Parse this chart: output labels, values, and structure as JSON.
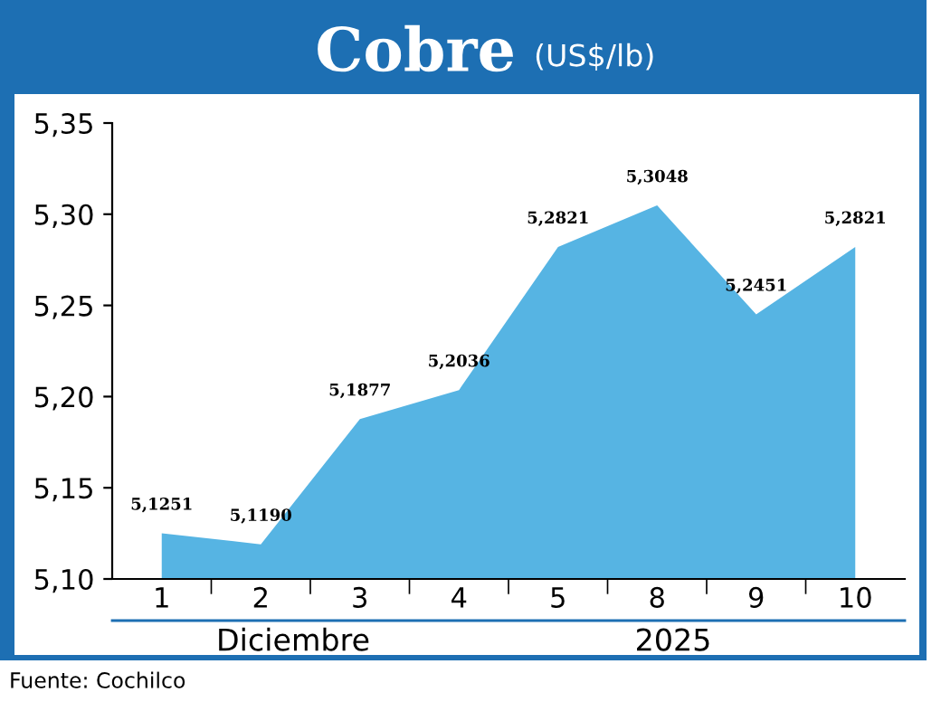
{
  "chart_data": {
    "type": "area",
    "title": "Cobre",
    "subtitle": "(US$/lb)",
    "xlabel": "Diciembre",
    "annotations": [
      "2025",
      "Fuente: Cochilco"
    ],
    "categories": [
      "1",
      "2",
      "3",
      "4",
      "5",
      "8",
      "9",
      "10"
    ],
    "series": [
      {
        "color": "#56b4e3",
        "values": [
          5.1251,
          5.119,
          5.1877,
          5.2036,
          5.2821,
          5.3048,
          5.2451,
          5.2821
        ]
      }
    ],
    "value_labels": [
      "5,1251",
      "5,1190",
      "5,1877",
      "5,2036",
      "5,2821",
      "5,3048",
      "5,2451",
      "5,2821"
    ],
    "ylim": [
      5.1,
      5.35
    ],
    "yticks": [
      {
        "value": 5.1,
        "label": "5,10"
      },
      {
        "value": 5.15,
        "label": "5,15"
      },
      {
        "value": 5.2,
        "label": "5,20"
      },
      {
        "value": 5.25,
        "label": "5,25"
      },
      {
        "value": 5.3,
        "label": "5,30"
      },
      {
        "value": 5.35,
        "label": "5,35"
      }
    ],
    "grid": false,
    "legend": false
  }
}
